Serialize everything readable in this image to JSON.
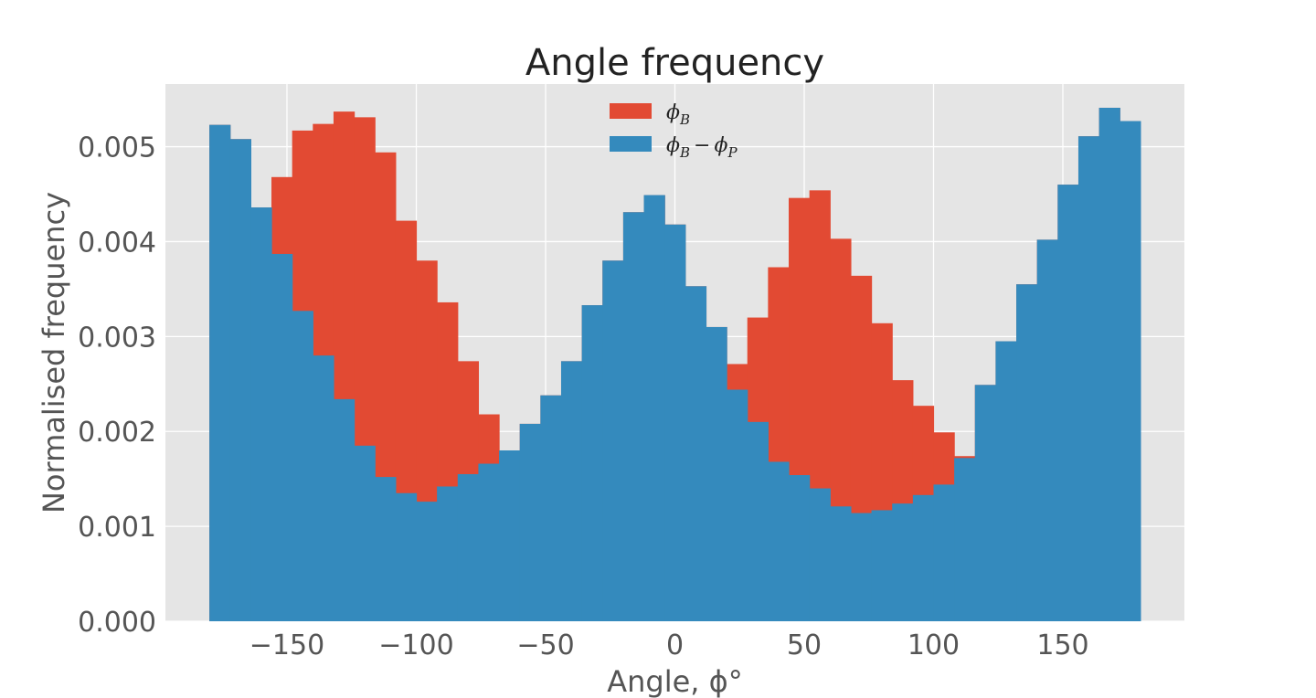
{
  "chart_data": {
    "type": "bar",
    "title": "Angle frequency",
    "xlabel": "Angle, ϕ°",
    "ylabel": "Normalised frequency",
    "xlim": [
      -197,
      197
    ],
    "ylim": [
      0,
      0.00566
    ],
    "xticks": [
      -150,
      -100,
      -50,
      0,
      50,
      100,
      150
    ],
    "xtick_labels": [
      "−150",
      "−100",
      "−50",
      "0",
      "50",
      "100",
      "150"
    ],
    "yticks": [
      0,
      0.001,
      0.002,
      0.003,
      0.004,
      0.005
    ],
    "ytick_labels": [
      "0.000",
      "0.001",
      "0.002",
      "0.003",
      "0.004",
      "0.005"
    ],
    "grid": true,
    "legend_position": "top-center",
    "bin_edges": [
      -180,
      -172,
      -164,
      -156,
      -148,
      -140,
      -132,
      -124,
      -116,
      -108,
      -100,
      -92,
      -84,
      -76,
      -68,
      -60,
      -52,
      -44,
      -36,
      -28,
      -20,
      -12,
      -4,
      4,
      12,
      20,
      28,
      36,
      44,
      52,
      60,
      68,
      76,
      84,
      92,
      100,
      108,
      116,
      124,
      132,
      140,
      148,
      156,
      164,
      172,
      180
    ],
    "series": [
      {
        "name": "ϕB",
        "legend_main": "ϕ",
        "legend_sub": "B",
        "color": "#e24a33",
        "values": [
          0.00523,
          0.00508,
          0.00436,
          0.00468,
          0.00517,
          0.00524,
          0.00537,
          0.00531,
          0.00494,
          0.00422,
          0.0038,
          0.00336,
          0.00274,
          0.00218,
          0.0018,
          0.00208,
          0.00238,
          0.00274,
          0.00333,
          0.0038,
          0.00431,
          0.00449,
          0.00418,
          0.00353,
          0.0031,
          0.00271,
          0.0032,
          0.00373,
          0.00446,
          0.00454,
          0.00403,
          0.00364,
          0.00314,
          0.00254,
          0.00227,
          0.00199,
          0.00174,
          0.00249,
          0.00295,
          0.00355,
          0.00402,
          0.0046,
          0.00511,
          0.00541,
          0.00527
        ]
      },
      {
        "name": "ϕB − ϕP",
        "legend_main": "ϕ",
        "legend_sub": "B",
        "legend_minus": "−",
        "legend_main2": "ϕ",
        "legend_sub2": "P",
        "color": "#348abd",
        "values": [
          0.00523,
          0.00508,
          0.00436,
          0.00387,
          0.00327,
          0.0028,
          0.00234,
          0.00185,
          0.00152,
          0.00135,
          0.00126,
          0.00142,
          0.00155,
          0.00166,
          0.0018,
          0.00208,
          0.00238,
          0.00274,
          0.00333,
          0.0038,
          0.00431,
          0.00449,
          0.00418,
          0.00353,
          0.0031,
          0.00244,
          0.0021,
          0.00168,
          0.00154,
          0.0014,
          0.00121,
          0.00114,
          0.00117,
          0.00124,
          0.00133,
          0.00144,
          0.00172,
          0.00249,
          0.00295,
          0.00355,
          0.00402,
          0.0046,
          0.00511,
          0.00541,
          0.00527
        ]
      }
    ]
  }
}
